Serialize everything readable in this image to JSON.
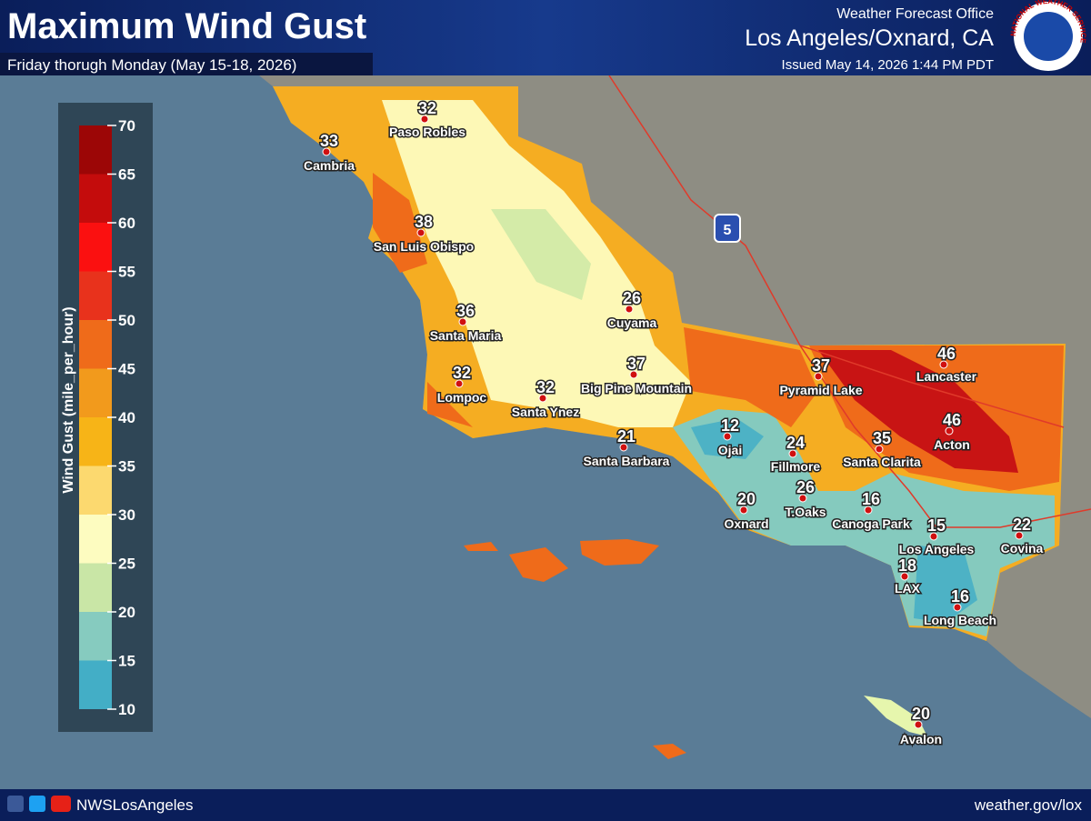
{
  "header": {
    "title": "Maximum Wind Gust",
    "subtitle": "Friday thorugh Monday (May 15-18, 2026)",
    "office": "Weather Forecast Office",
    "location": "Los Angeles/Oxnard, CA",
    "issued": "Issued May 14, 2026 1:44 PM PDT",
    "logo": "NATIONAL WEATHER SERVICE"
  },
  "legend": {
    "title": "Wind Gust (mile_per_hour)",
    "ticks": [
      10,
      15,
      20,
      25,
      30,
      35,
      40,
      45,
      50,
      55,
      60,
      65,
      70
    ],
    "colors": [
      "#43aec6",
      "#86cbbf",
      "#c9e6a6",
      "#fdfcc0",
      "#fcd96f",
      "#f7b417",
      "#f29a1c",
      "#ef6b1a",
      "#e8321c",
      "#fb1010",
      "#c40c0c",
      "#9c0606"
    ]
  },
  "map": {
    "highway": "5",
    "stations": [
      {
        "name": "Paso Robles",
        "gust": 32
      },
      {
        "name": "Cambria",
        "gust": 33
      },
      {
        "name": "San Luis Obispo",
        "gust": 38
      },
      {
        "name": "Cuyama",
        "gust": 26
      },
      {
        "name": "Santa Maria",
        "gust": 36
      },
      {
        "name": "Lompoc",
        "gust": 32
      },
      {
        "name": "Santa Ynez",
        "gust": 32
      },
      {
        "name": "Big Pine Mountain",
        "gust": 37
      },
      {
        "name": "Santa Barbara",
        "gust": 21
      },
      {
        "name": "Ojai",
        "gust": 12
      },
      {
        "name": "Pyramid Lake",
        "gust": 37
      },
      {
        "name": "Lancaster",
        "gust": 46
      },
      {
        "name": "Acton",
        "gust": 46
      },
      {
        "name": "Santa Clarita",
        "gust": 35
      },
      {
        "name": "Fillmore",
        "gust": 24
      },
      {
        "name": "T.Oaks",
        "gust": 26
      },
      {
        "name": "Oxnard",
        "gust": 20
      },
      {
        "name": "Canoga Park",
        "gust": 16
      },
      {
        "name": "Los Angeles",
        "gust": 15
      },
      {
        "name": "Covina",
        "gust": 22
      },
      {
        "name": "LAX",
        "gust": 18
      },
      {
        "name": "Long Beach",
        "gust": 16
      },
      {
        "name": "Avalon",
        "gust": 20
      }
    ]
  },
  "footer": {
    "social": "NWSLosAngeles",
    "url": "weather.gov/lox"
  }
}
